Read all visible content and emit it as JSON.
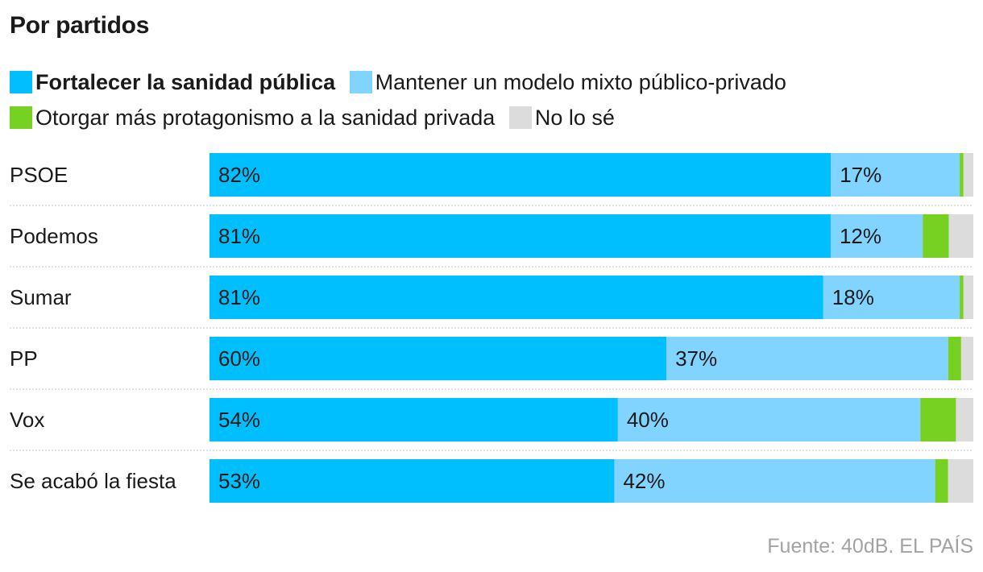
{
  "chart_data": {
    "type": "bar",
    "orientation": "horizontal",
    "stacked": true,
    "title": "Por partidos",
    "source": "Fuente: 40dB. EL PAÍS",
    "legend_position": "top",
    "xlim": [
      0,
      100
    ],
    "categories": [
      "PSOE",
      "Podemos",
      "Sumar",
      "PP",
      "Vox",
      "Se acabó la fiesta"
    ],
    "series": [
      {
        "name": "Fortalecer la sanidad pública",
        "color": "#00bfff",
        "values": [
          82,
          81,
          81,
          60,
          54,
          53
        ],
        "labels": [
          "82%",
          "81%",
          "81%",
          "60%",
          "54%",
          "53%"
        ]
      },
      {
        "name": "Mantener un modelo mixto público-privado",
        "color": "#80d4ff",
        "values": [
          17,
          12,
          18,
          37,
          40,
          42
        ],
        "labels": [
          "17%",
          "12%",
          "18%",
          "37%",
          "40%",
          "42%"
        ]
      },
      {
        "name": "Otorgar más protagonismo a la sanidad privada",
        "color": "#77d122",
        "values": [
          0.5,
          3.4,
          0.5,
          1.7,
          4.7,
          1.7
        ]
      },
      {
        "name": "No lo sé",
        "color": "#dcdcdc",
        "values": [
          1.3,
          3.2,
          1.3,
          1.6,
          2.3,
          3.3
        ]
      }
    ]
  }
}
